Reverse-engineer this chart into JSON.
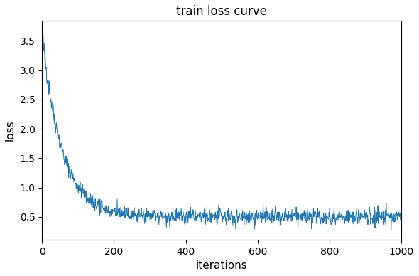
{
  "title": "train loss curve",
  "xlabel": "iterations",
  "ylabel": "loss",
  "xlim": [
    0,
    1000
  ],
  "line_color": "#1f77b4",
  "line_width": 0.7,
  "n_points": 1000,
  "seed": 42,
  "initial_loss": 3.62,
  "final_loss": 0.5,
  "decay_rate": 0.018,
  "noise_scale": 0.1,
  "figsize": [
    5.9,
    3.88
  ],
  "dpi": 100
}
